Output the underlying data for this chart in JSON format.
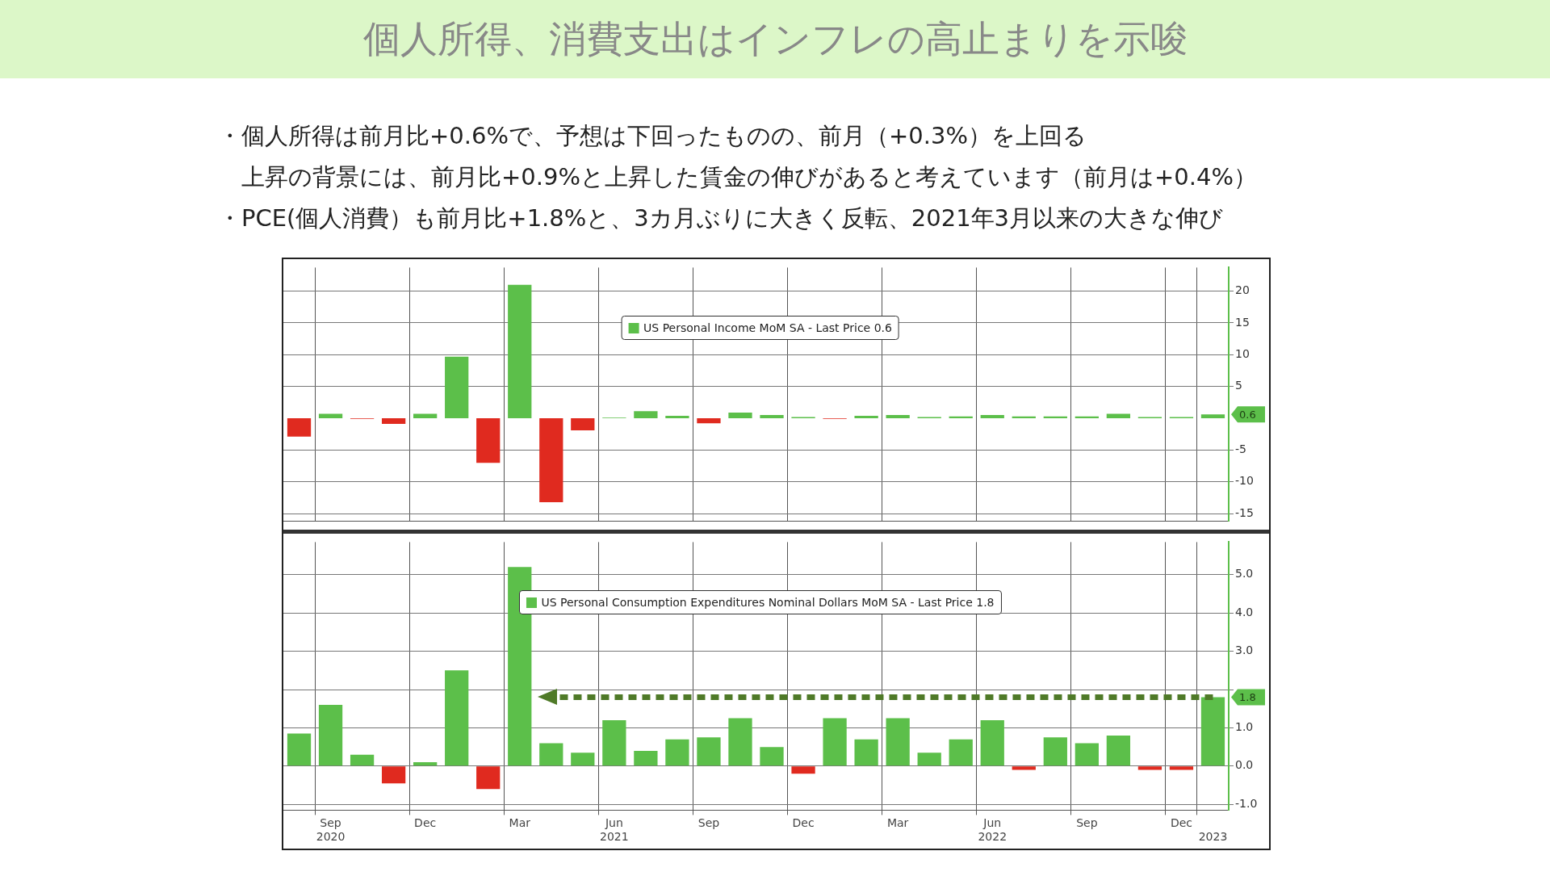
{
  "chart_data": [
    {
      "type": "bar",
      "title": "個人所得、消費支出はインフレの高止まりを示唆",
      "categories": [
        null,
        null,
        null,
        null,
        null,
        null,
        null,
        null,
        null,
        null,
        null,
        null,
        null,
        null,
        null,
        null,
        null,
        null,
        null,
        null,
        null,
        null,
        null,
        null,
        null,
        null,
        null,
        null,
        null,
        null
      ],
      "series": [
        {
          "name": "US Personal Income MoM SA - Last Price 0.6",
          "values": [
            -2.9,
            0.7,
            -0.1,
            -0.9,
            0.7,
            9.7,
            -7.0,
            21.0,
            -13.2,
            -1.9,
            0.1,
            1.1,
            0.4,
            -0.8,
            0.9,
            0.5,
            0.2,
            -0.1,
            0.4,
            0.5,
            0.2,
            0.3,
            0.5,
            0.3,
            0.3,
            0.3,
            0.7,
            0.2,
            0.2,
            0.6
          ],
          "colors": [
            "#e02a1f",
            "#5cbf4a",
            "#e02a1f",
            "#e02a1f",
            "#5cbf4a",
            "#5cbf4a",
            "#e02a1f",
            "#5cbf4a",
            "#e02a1f",
            "#e02a1f",
            "#5cbf4a",
            "#5cbf4a",
            "#5cbf4a",
            "#e02a1f",
            "#5cbf4a",
            "#5cbf4a",
            "#5cbf4a",
            "#e02a1f",
            "#5cbf4a",
            "#5cbf4a",
            "#5cbf4a",
            "#5cbf4a",
            "#5cbf4a",
            "#5cbf4a",
            "#5cbf4a",
            "#5cbf4a",
            "#5cbf4a",
            "#5cbf4a",
            "#5cbf4a",
            "#5cbf4a"
          ]
        }
      ],
      "ylim": [
        -16.2,
        23.7
      ],
      "yticks": [
        -15,
        -10,
        -5,
        5,
        10,
        15,
        20
      ],
      "grid": true,
      "legend": "top",
      "tick_labels": "y",
      "annotations": [
        "・個人所得は前月比+0.6%で、予想は下回ったものの、前月（+0.3%）を上回る",
        "上昇の背景には、前月比+0.9%と上昇した賃金の伸びがあると考えています（前月は+0.4%）",
        "・PCE(個人消費）も前月比+1.8%と、3カ月ぶりに大きく反転、2021年3月以来の大きな伸び",
        "0.6"
      ]
    },
    {
      "type": "bar",
      "categories": [
        null,
        "Sep\n2020",
        null,
        null,
        "Dec",
        null,
        null,
        "Mar",
        null,
        null,
        "Jun\n2021",
        null,
        null,
        "Sep",
        null,
        null,
        "Dec",
        null,
        null,
        "Mar",
        null,
        null,
        "Jun\n2022",
        null,
        null,
        "Sep",
        null,
        null,
        "Dec",
        "\n2023"
      ],
      "series": [
        {
          "name": "US Personal Consumption Expenditures Nominal Dollars MoM SA - Last Price 1.8",
          "values": [
            0.85,
            1.6,
            0.3,
            -0.45,
            0.1,
            2.5,
            -0.6,
            5.2,
            0.6,
            0.35,
            1.2,
            0.4,
            0.7,
            0.75,
            1.25,
            0.5,
            -0.2,
            1.25,
            0.7,
            1.25,
            0.35,
            0.7,
            1.2,
            -0.1,
            0.75,
            0.6,
            0.8,
            -0.1,
            -0.1,
            1.8
          ],
          "colors": [
            "#5cbf4a",
            "#5cbf4a",
            "#5cbf4a",
            "#e02a1f",
            "#5cbf4a",
            "#5cbf4a",
            "#e02a1f",
            "#5cbf4a",
            "#5cbf4a",
            "#5cbf4a",
            "#5cbf4a",
            "#5cbf4a",
            "#5cbf4a",
            "#5cbf4a",
            "#5cbf4a",
            "#5cbf4a",
            "#e02a1f",
            "#5cbf4a",
            "#5cbf4a",
            "#5cbf4a",
            "#5cbf4a",
            "#5cbf4a",
            "#5cbf4a",
            "#e02a1f",
            "#5cbf4a",
            "#5cbf4a",
            "#5cbf4a",
            "#e02a1f",
            "#e02a1f",
            "#5cbf4a"
          ]
        }
      ],
      "ylim": [
        -1.15,
        5.85
      ],
      "yticks": [
        {
          "value": -1,
          "label": "-1.0"
        },
        {
          "value": 0,
          "label": "0.0"
        },
        {
          "value": 1,
          "label": "1.0"
        },
        {
          "value": 2,
          "label": null
        },
        {
          "value": 3,
          "label": "3.0"
        },
        {
          "value": 4,
          "label": "4.0"
        },
        {
          "value": 5,
          "label": "5.0"
        }
      ],
      "grid": true,
      "legend": "top",
      "ref_lines": [
        {
          "axis": "y",
          "value": 1.8,
          "color": "#4f7a28",
          "line_style": "dashed"
        }
      ],
      "annotations": [
        "1.8"
      ]
    }
  ]
}
